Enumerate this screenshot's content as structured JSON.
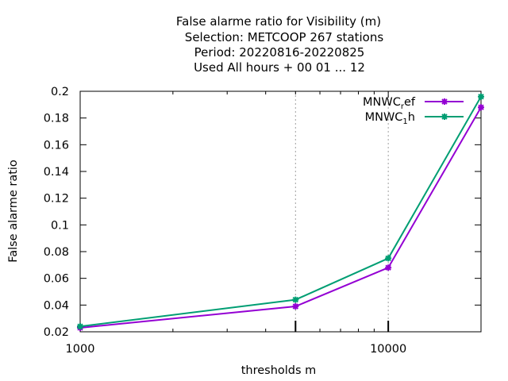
{
  "chart_data": {
    "type": "line",
    "title_lines": [
      "False alarme ratio  for Visibility (m)",
      "Selection: METCOOP    267 stations",
      "Period: 20220816-20220825",
      "Used  All hours + 00 01 ... 12"
    ],
    "xlabel": "thresholds m",
    "ylabel": "False alarme ratio",
    "x_scale": "log",
    "xlim": [
      1000,
      20000
    ],
    "ylim": [
      0.02,
      0.2
    ],
    "x_tick_labels": [
      "1000",
      "10000"
    ],
    "y_tick_labels": [
      "0.02",
      "0.04",
      "0.06",
      "0.08",
      "0.1",
      "0.12",
      "0.14",
      "0.16",
      "0.18",
      "0.2"
    ],
    "y_ticks": [
      0.02,
      0.04,
      0.06,
      0.08,
      0.1,
      0.12,
      0.14,
      0.16,
      0.18,
      0.2
    ],
    "x": [
      1000,
      5000,
      10000,
      20000
    ],
    "grid": true,
    "legend_position": "top-right",
    "series": [
      {
        "name": "MNWC_ref",
        "legend_main": "MNWC",
        "legend_sub": "r",
        "legend_tail": "ef",
        "color": "#9400d3",
        "values": [
          0.023,
          0.039,
          0.068,
          0.188
        ]
      },
      {
        "name": "MNWC_1h",
        "legend_main": "MNWC",
        "legend_sub": "1",
        "legend_tail": "h",
        "color": "#009e73",
        "values": [
          0.024,
          0.044,
          0.075,
          0.196
        ]
      }
    ]
  }
}
